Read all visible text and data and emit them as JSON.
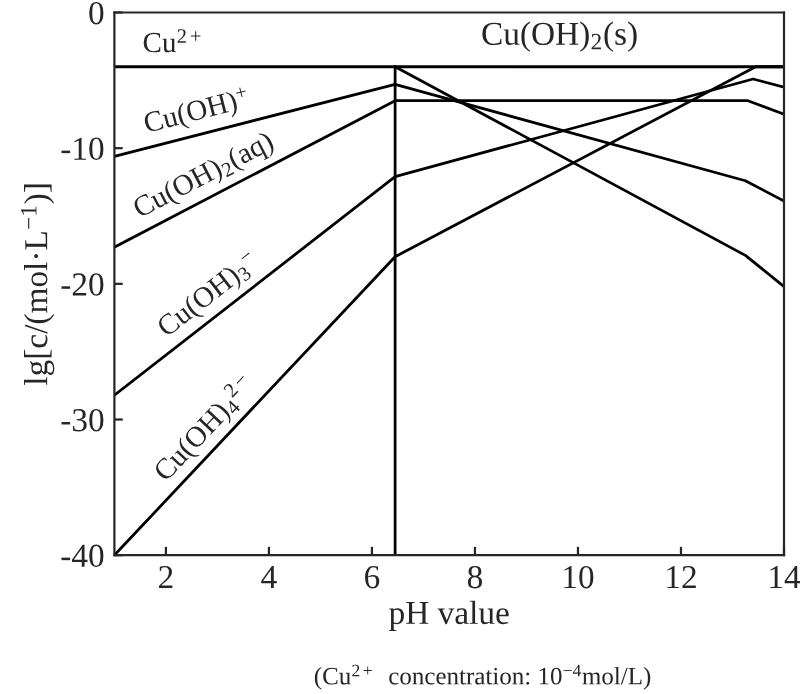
{
  "chart_data": {
    "type": "line",
    "xlabel": "pH value",
    "ylabel": "lg[c/(mol·L$^{−1}$)]",
    "xlim": [
      1,
      14
    ],
    "ylim": [
      -40,
      0
    ],
    "xticks": [
      2,
      4,
      6,
      8,
      10,
      12,
      14
    ],
    "yticks": [
      -40,
      -30,
      -20,
      -10,
      0
    ],
    "grid": false,
    "legend": false,
    "marker": "none",
    "line_style": "solid",
    "series": [
      {
        "name": "Cu$^{2+}$",
        "color": "#000000",
        "x": [
          1,
          6.45,
          13.25,
          14
        ],
        "values": [
          -4,
          -4,
          -17.9,
          -20.2
        ]
      },
      {
        "name": "Cu(OH)$^{+}$",
        "color": "#000000",
        "x": [
          1,
          6.45,
          13.25,
          14
        ],
        "values": [
          -10.6,
          -5.3,
          -12.4,
          -13.9
        ]
      },
      {
        "name": "Cu(OH)$_{2}$(aq)",
        "color": "#000000",
        "x": [
          1,
          6.45,
          13.3,
          14
        ],
        "values": [
          -17.3,
          -6.5,
          -6.5,
          -7.5
        ]
      },
      {
        "name": "Cu(OH)$_{3}$$^{−}$",
        "color": "#000000",
        "x": [
          1,
          6.45,
          13.4,
          14
        ],
        "values": [
          -28.2,
          -12.1,
          -4.9,
          -5.5
        ]
      },
      {
        "name": "Cu(OH)$_{4}$$^{2−}$",
        "color": "#000000",
        "x": [
          1,
          6.45,
          13.45,
          14
        ],
        "values": [
          -40,
          -18,
          -4,
          -4
        ]
      },
      {
        "color": "#000000",
        "x": [
          6.45,
          14
        ],
        "values": [
          -4,
          -4
        ]
      },
      {
        "color": "#000000",
        "x": [
          6.45,
          6.45
        ],
        "values": [
          -40,
          -4
        ]
      }
    ],
    "annotations": [
      "Cu(OH)$_{2}$(s)",
      "(Cu$^{2+}$  concentration: 10$^{−4}$mol/L)"
    ]
  }
}
